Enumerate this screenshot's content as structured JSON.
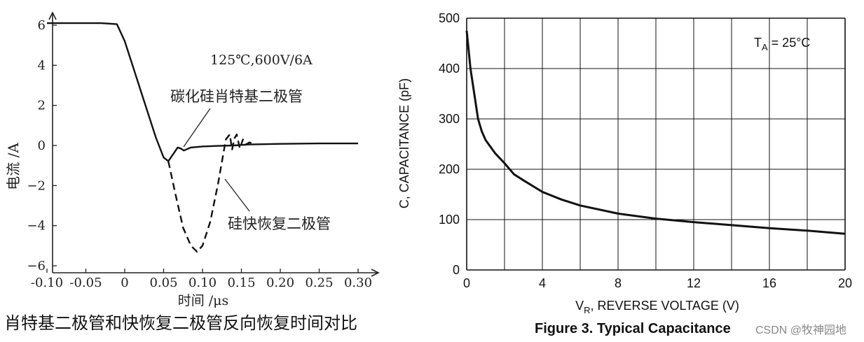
{
  "chart_data": [
    {
      "type": "line",
      "xlabel": "时间 /μs",
      "ylabel": "电流 /A",
      "xlim": [
        -0.1,
        0.3
      ],
      "ylim": [
        -6,
        6.5
      ],
      "x_ticks": [
        -0.1,
        -0.05,
        0,
        0.05,
        0.1,
        0.15,
        0.2,
        0.25,
        0.3
      ],
      "x_tick_labels": [
        "-0.10",
        "-0.05",
        "0",
        "0.05",
        "0.10",
        "0.15",
        "0.20",
        "0.25",
        "0.30"
      ],
      "y_ticks": [
        -6,
        -4,
        -2,
        0,
        2,
        4,
        6
      ],
      "y_tick_labels": [
        "−6",
        "−4",
        "−2",
        "0",
        "2",
        "4",
        "6"
      ],
      "annotations": {
        "condition": "125℃,600V/6A",
        "sic_label": "碳化硅肖特基二极管",
        "si_label": "硅快恢复二极管"
      },
      "caption": "肖特基二极管和快恢复二极管反向恢复时间对比",
      "series": [
        {
          "style": "solid",
          "x": [
            -0.1,
            -0.03,
            -0.01,
            0.0,
            0.01,
            0.02,
            0.03,
            0.04,
            0.05,
            0.056,
            0.062,
            0.068,
            0.072,
            0.076,
            0.085,
            0.1,
            0.12,
            0.14,
            0.16,
            0.2,
            0.25,
            0.3
          ],
          "y": [
            6.1,
            6.1,
            6.05,
            5.2,
            4.0,
            2.8,
            1.6,
            0.4,
            -0.6,
            -0.78,
            -0.45,
            -0.1,
            -0.15,
            -0.25,
            -0.1,
            -0.05,
            -0.02,
            0.0,
            0.05,
            0.08,
            0.1,
            0.1
          ]
        },
        {
          "style": "dashed",
          "x": [
            0.056,
            0.065,
            0.075,
            0.085,
            0.093,
            0.1,
            0.11,
            0.12,
            0.13,
            0.135,
            0.138,
            0.141,
            0.144,
            0.148,
            0.152,
            0.156,
            0.16,
            0.165
          ],
          "y": [
            -0.78,
            -2.4,
            -4.1,
            -5.0,
            -5.3,
            -5.0,
            -3.8,
            -1.9,
            0.3,
            0.55,
            -0.2,
            0.35,
            0.55,
            -0.15,
            0.3,
            0.05,
            0.15,
            0.1
          ]
        }
      ]
    },
    {
      "type": "line",
      "title": "Figure 3. Typical Capacitance",
      "xlabel_main": "V",
      "xlabel_sub": "R",
      "xlabel_rest": ", REVERSE VOLTAGE (V)",
      "ylabel": "C, CAPACITANCE (pF)",
      "xlim": [
        0,
        20
      ],
      "ylim": [
        0,
        500
      ],
      "grid": true,
      "x_ticks": [
        0,
        4,
        8,
        12,
        16,
        20
      ],
      "x_tick_labels": [
        "0",
        "4",
        "8",
        "12",
        "16",
        "20"
      ],
      "y_ticks": [
        0,
        100,
        200,
        300,
        400,
        500
      ],
      "y_tick_labels": [
        "0",
        "100",
        "200",
        "300",
        "400",
        "500"
      ],
      "annotation_main": "T",
      "annotation_sub": "A",
      "annotation_rest": " = 25°C",
      "x": [
        0.0,
        0.2,
        0.4,
        0.6,
        0.8,
        1.0,
        1.5,
        2.0,
        2.5,
        3.0,
        4.0,
        5.0,
        6.0,
        8.0,
        10.0,
        12.0,
        14.0,
        16.0,
        18.0,
        20.0
      ],
      "y": [
        475,
        400,
        350,
        300,
        275,
        258,
        232,
        212,
        190,
        178,
        155,
        140,
        128,
        112,
        102,
        95,
        89,
        83,
        78,
        72
      ]
    }
  ],
  "watermark": "CSDN @牧神园地"
}
